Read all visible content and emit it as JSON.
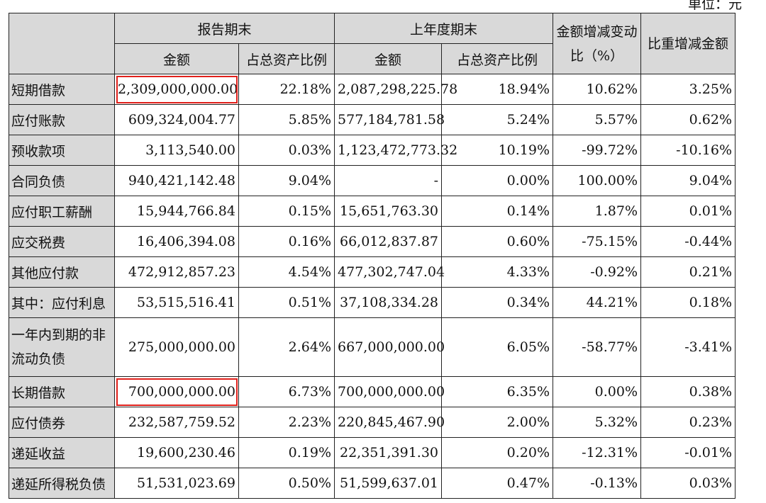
{
  "unit_label": "单位：元",
  "header": {
    "group_current": "报告期末",
    "group_prior": "上年度期末",
    "col_amount": "金额",
    "col_ratio": "占总资产比例",
    "col_change": "金额增减变动比（%）",
    "col_weight": "比重增减金额"
  },
  "rows": [
    {
      "label": "短期借款",
      "cur_amount": "2,309,000,000.00",
      "cur_ratio": "22.18%",
      "prior_amount": "2,087,298,225.78",
      "prior_ratio": "18.94%",
      "change": "10.62%",
      "weight": "3.25%"
    },
    {
      "label": "应付账款",
      "cur_amount": "609,324,004.77",
      "cur_ratio": "5.85%",
      "prior_amount": "577,184,781.58",
      "prior_ratio": "5.24%",
      "change": "5.57%",
      "weight": "0.62%"
    },
    {
      "label": "预收款项",
      "cur_amount": "3,113,540.00",
      "cur_ratio": "0.03%",
      "prior_amount": "1,123,472,773.32",
      "prior_ratio": "10.19%",
      "change": "-99.72%",
      "weight": "-10.16%"
    },
    {
      "label": "合同负债",
      "cur_amount": "940,421,142.48",
      "cur_ratio": "9.04%",
      "prior_amount": "-",
      "prior_ratio": "0.00%",
      "change": "100.00%",
      "weight": "9.04%"
    },
    {
      "label": "应付职工薪酬",
      "cur_amount": "15,944,766.84",
      "cur_ratio": "0.15%",
      "prior_amount": "15,651,763.30",
      "prior_ratio": "0.14%",
      "change": "1.87%",
      "weight": "0.01%"
    },
    {
      "label": "应交税费",
      "cur_amount": "16,406,394.08",
      "cur_ratio": "0.16%",
      "prior_amount": "66,012,837.87",
      "prior_ratio": "0.60%",
      "change": "-75.15%",
      "weight": "-0.44%"
    },
    {
      "label": "其他应付款",
      "cur_amount": "472,912,857.23",
      "cur_ratio": "4.54%",
      "prior_amount": "477,302,747.04",
      "prior_ratio": "4.33%",
      "change": "-0.92%",
      "weight": "0.21%"
    },
    {
      "label": "其中：应付利息",
      "cur_amount": "53,515,516.41",
      "cur_ratio": "0.51%",
      "prior_amount": "37,108,334.28",
      "prior_ratio": "0.34%",
      "change": "44.21%",
      "weight": "0.18%"
    },
    {
      "label": "一年内到期的非流动负债",
      "cur_amount": "275,000,000.00",
      "cur_ratio": "2.64%",
      "prior_amount": "667,000,000.00",
      "prior_ratio": "6.05%",
      "change": "-58.77%",
      "weight": "-3.41%"
    },
    {
      "label": "长期借款",
      "cur_amount": "700,000,000.00",
      "cur_ratio": "6.73%",
      "prior_amount": "700,000,000.00",
      "prior_ratio": "6.35%",
      "change": "0.00%",
      "weight": "0.38%"
    },
    {
      "label": "应付债券",
      "cur_amount": "232,587,759.52",
      "cur_ratio": "2.23%",
      "prior_amount": "220,845,467.90",
      "prior_ratio": "2.00%",
      "change": "5.32%",
      "weight": "0.23%"
    },
    {
      "label": "递延收益",
      "cur_amount": "19,600,230.46",
      "cur_ratio": "0.19%",
      "prior_amount": "22,351,391.30",
      "prior_ratio": "0.20%",
      "change": "-12.31%",
      "weight": "-0.01%"
    },
    {
      "label": "递延所得税负债",
      "cur_amount": "51,531,023.69",
      "cur_ratio": "0.50%",
      "prior_amount": "51,599,637.01",
      "prior_ratio": "0.47%",
      "change": "-0.13%",
      "weight": "0.03%"
    }
  ],
  "highlight_color": "#e0201b"
}
